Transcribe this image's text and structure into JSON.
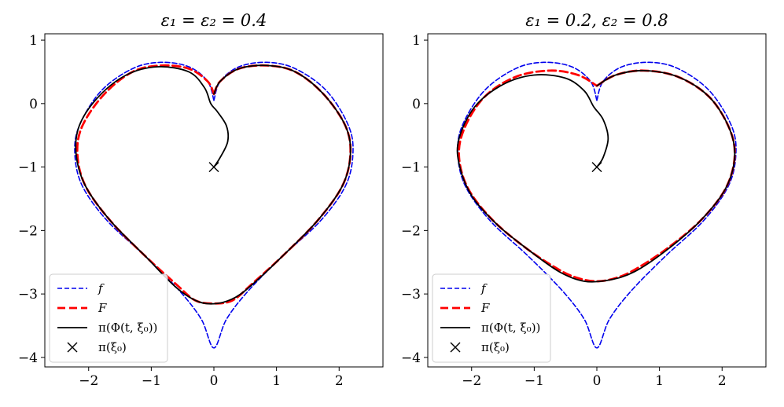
{
  "chart_data": [
    {
      "type": "line",
      "title": "ε₁ = ε₂ = 0.4",
      "xlim": [
        -2.7,
        2.7
      ],
      "ylim": [
        -4.15,
        1.1
      ],
      "xticks": [
        -2,
        -1,
        0,
        1,
        2
      ],
      "yticks": [
        1,
        0,
        -1,
        -2,
        -3,
        -4
      ],
      "xtick_labels": [
        "−2",
        "−1",
        "0",
        "1",
        "2"
      ],
      "ytick_labels": [
        "1",
        "0",
        "−1",
        "−2",
        "−3",
        "−4"
      ],
      "legend_position": "lower-left",
      "series": [
        {
          "name": "f",
          "style": "dashed",
          "color": "#0000ee",
          "points": [
            [
              0.0,
              0.05
            ],
            [
              0.1,
              0.35
            ],
            [
              0.4,
              0.58
            ],
            [
              0.85,
              0.65
            ],
            [
              1.3,
              0.55
            ],
            [
              1.8,
              0.2
            ],
            [
              2.15,
              -0.35
            ],
            [
              2.22,
              -0.8
            ],
            [
              2.1,
              -1.3
            ],
            [
              1.7,
              -1.85
            ],
            [
              1.1,
              -2.4
            ],
            [
              0.55,
              -2.95
            ],
            [
              0.2,
              -3.4
            ],
            [
              0.0,
              -3.85
            ],
            [
              -0.2,
              -3.4
            ],
            [
              -0.55,
              -2.95
            ],
            [
              -1.1,
              -2.4
            ],
            [
              -1.7,
              -1.85
            ],
            [
              -2.1,
              -1.3
            ],
            [
              -2.22,
              -0.8
            ],
            [
              -2.15,
              -0.35
            ],
            [
              -1.8,
              0.2
            ],
            [
              -1.3,
              0.55
            ],
            [
              -0.85,
              0.65
            ],
            [
              -0.4,
              0.58
            ],
            [
              -0.1,
              0.35
            ],
            [
              0.0,
              0.05
            ]
          ]
        },
        {
          "name": "F",
          "style": "dashed-thick",
          "color": "#ff0000",
          "points": [
            [
              0.0,
              0.15
            ],
            [
              0.1,
              0.35
            ],
            [
              0.4,
              0.55
            ],
            [
              0.85,
              0.6
            ],
            [
              1.3,
              0.5
            ],
            [
              1.75,
              0.15
            ],
            [
              2.1,
              -0.35
            ],
            [
              2.18,
              -0.8
            ],
            [
              2.05,
              -1.3
            ],
            [
              1.65,
              -1.85
            ],
            [
              1.1,
              -2.4
            ],
            [
              0.6,
              -2.85
            ],
            [
              0.3,
              -3.1
            ],
            [
              0.0,
              -3.15
            ],
            [
              -0.3,
              -3.1
            ],
            [
              -0.6,
              -2.85
            ],
            [
              -1.1,
              -2.4
            ],
            [
              -1.65,
              -1.85
            ],
            [
              -2.05,
              -1.3
            ],
            [
              -2.18,
              -0.8
            ],
            [
              -2.1,
              -0.35
            ],
            [
              -1.75,
              0.15
            ],
            [
              -1.3,
              0.5
            ],
            [
              -0.85,
              0.6
            ],
            [
              -0.4,
              0.55
            ],
            [
              -0.1,
              0.35
            ],
            [
              0.0,
              0.15
            ]
          ]
        },
        {
          "name": "π(Φ(t, ξ₀))",
          "style": "solid",
          "color": "#000000",
          "points": [
            [
              0.0,
              -1.0
            ],
            [
              0.1,
              -0.85
            ],
            [
              0.22,
              -0.6
            ],
            [
              0.2,
              -0.35
            ],
            [
              0.05,
              -0.12
            ],
            [
              -0.05,
              0.0
            ],
            [
              -0.15,
              0.25
            ],
            [
              -0.4,
              0.5
            ],
            [
              -0.9,
              0.58
            ],
            [
              -1.4,
              0.45
            ],
            [
              -1.85,
              0.1
            ],
            [
              -2.15,
              -0.35
            ],
            [
              -2.2,
              -0.8
            ],
            [
              -2.05,
              -1.3
            ],
            [
              -1.65,
              -1.85
            ],
            [
              -1.1,
              -2.4
            ],
            [
              -0.6,
              -2.9
            ],
            [
              -0.25,
              -3.12
            ],
            [
              0.05,
              -3.15
            ],
            [
              0.35,
              -3.05
            ],
            [
              0.65,
              -2.82
            ],
            [
              1.1,
              -2.4
            ],
            [
              1.65,
              -1.85
            ],
            [
              2.05,
              -1.3
            ],
            [
              2.18,
              -0.8
            ],
            [
              2.1,
              -0.35
            ],
            [
              1.75,
              0.15
            ],
            [
              1.3,
              0.5
            ],
            [
              0.85,
              0.6
            ],
            [
              0.4,
              0.55
            ],
            [
              0.1,
              0.35
            ],
            [
              0.0,
              0.15
            ]
          ]
        }
      ],
      "marker": {
        "name": "π(ξ₀)",
        "x": 0,
        "y": -1
      }
    },
    {
      "type": "line",
      "title": "ε₁ = 0.2, ε₂ = 0.8",
      "xlim": [
        -2.7,
        2.7
      ],
      "ylim": [
        -4.15,
        1.1
      ],
      "xticks": [
        -2,
        -1,
        0,
        1,
        2
      ],
      "yticks": [
        1,
        0,
        -1,
        -2,
        -3,
        -4
      ],
      "xtick_labels": [
        "−2",
        "−1",
        "0",
        "1",
        "2"
      ],
      "ytick_labels": [
        "1",
        "0",
        "−1",
        "−2",
        "−3",
        "−4"
      ],
      "legend_position": "lower-left",
      "series": [
        {
          "name": "f",
          "style": "dashed",
          "color": "#0000ee",
          "points": [
            [
              0.0,
              0.05
            ],
            [
              0.1,
              0.35
            ],
            [
              0.4,
              0.58
            ],
            [
              0.85,
              0.65
            ],
            [
              1.3,
              0.55
            ],
            [
              1.8,
              0.2
            ],
            [
              2.15,
              -0.35
            ],
            [
              2.22,
              -0.8
            ],
            [
              2.1,
              -1.3
            ],
            [
              1.7,
              -1.85
            ],
            [
              1.1,
              -2.4
            ],
            [
              0.55,
              -2.95
            ],
            [
              0.2,
              -3.4
            ],
            [
              0.0,
              -3.85
            ],
            [
              -0.2,
              -3.4
            ],
            [
              -0.55,
              -2.95
            ],
            [
              -1.1,
              -2.4
            ],
            [
              -1.7,
              -1.85
            ],
            [
              -2.1,
              -1.3
            ],
            [
              -2.22,
              -0.8
            ],
            [
              -2.15,
              -0.35
            ],
            [
              -1.8,
              0.2
            ],
            [
              -1.3,
              0.55
            ],
            [
              -0.85,
              0.65
            ],
            [
              -0.4,
              0.58
            ],
            [
              -0.1,
              0.35
            ],
            [
              0.0,
              0.05
            ]
          ]
        },
        {
          "name": "F",
          "style": "dashed-thick",
          "color": "#ff0000",
          "points": [
            [
              0.0,
              0.28
            ],
            [
              0.3,
              0.45
            ],
            [
              0.75,
              0.52
            ],
            [
              1.3,
              0.42
            ],
            [
              1.8,
              0.1
            ],
            [
              2.12,
              -0.4
            ],
            [
              2.2,
              -0.85
            ],
            [
              2.05,
              -1.35
            ],
            [
              1.65,
              -1.85
            ],
            [
              1.1,
              -2.3
            ],
            [
              0.6,
              -2.62
            ],
            [
              0.3,
              -2.75
            ],
            [
              0.0,
              -2.8
            ],
            [
              -0.3,
              -2.75
            ],
            [
              -0.6,
              -2.62
            ],
            [
              -1.1,
              -2.3
            ],
            [
              -1.65,
              -1.85
            ],
            [
              -2.05,
              -1.35
            ],
            [
              -2.2,
              -0.85
            ],
            [
              -2.12,
              -0.4
            ],
            [
              -1.8,
              0.1
            ],
            [
              -1.3,
              0.42
            ],
            [
              -0.75,
              0.52
            ],
            [
              -0.3,
              0.45
            ],
            [
              0.0,
              0.28
            ]
          ]
        },
        {
          "name": "π(Φ(t, ξ₀))",
          "style": "solid",
          "color": "#000000",
          "points": [
            [
              0.0,
              -1.0
            ],
            [
              0.1,
              -0.85
            ],
            [
              0.18,
              -0.55
            ],
            [
              0.1,
              -0.25
            ],
            [
              -0.05,
              -0.05
            ],
            [
              -0.2,
              0.2
            ],
            [
              -0.5,
              0.4
            ],
            [
              -1.0,
              0.45
            ],
            [
              -1.5,
              0.3
            ],
            [
              -1.95,
              -0.05
            ],
            [
              -2.2,
              -0.55
            ],
            [
              -2.2,
              -0.95
            ],
            [
              -2.0,
              -1.45
            ],
            [
              -1.6,
              -1.9
            ],
            [
              -1.1,
              -2.3
            ],
            [
              -0.6,
              -2.65
            ],
            [
              -0.2,
              -2.8
            ],
            [
              0.2,
              -2.78
            ],
            [
              0.6,
              -2.65
            ],
            [
              1.1,
              -2.32
            ],
            [
              1.65,
              -1.85
            ],
            [
              2.05,
              -1.35
            ],
            [
              2.2,
              -0.85
            ],
            [
              2.12,
              -0.4
            ],
            [
              1.8,
              0.1
            ],
            [
              1.3,
              0.42
            ],
            [
              0.75,
              0.52
            ],
            [
              0.3,
              0.45
            ],
            [
              0.0,
              0.28
            ]
          ]
        }
      ],
      "marker": {
        "name": "π(ξ₀)",
        "x": 0,
        "y": -1
      }
    }
  ],
  "colors": {
    "f": "#0000ee",
    "F": "#ff0000",
    "trajectory": "#000000",
    "marker": "#000000"
  }
}
